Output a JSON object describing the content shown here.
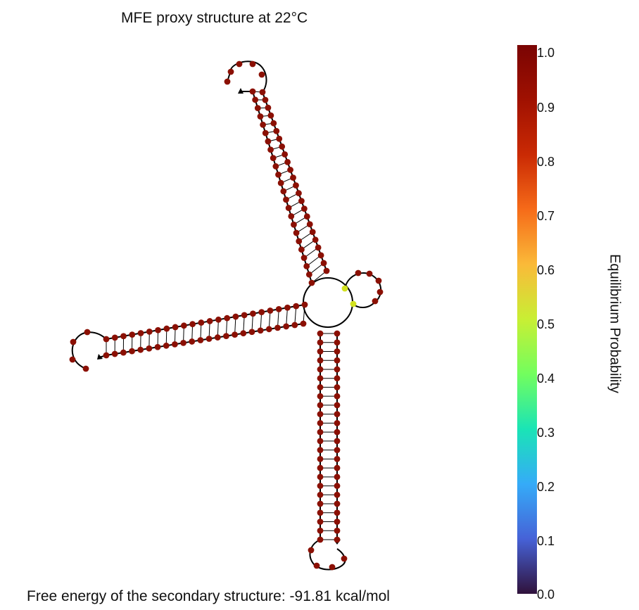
{
  "title": "MFE proxy structure at 22°C",
  "free_energy_text": "Free energy of the secondary structure: -91.81 kcal/mol",
  "colorbar": {
    "label": "Equilibrium Probability",
    "ticks": [
      "1.0",
      "0.9",
      "0.8",
      "0.7",
      "0.6",
      "0.5",
      "0.4",
      "0.3",
      "0.2",
      "0.1",
      "0.0"
    ]
  },
  "colors": {
    "high_probability": "#8b1004",
    "mid_probability": "#d2e21f",
    "backbone": "#000000"
  }
}
